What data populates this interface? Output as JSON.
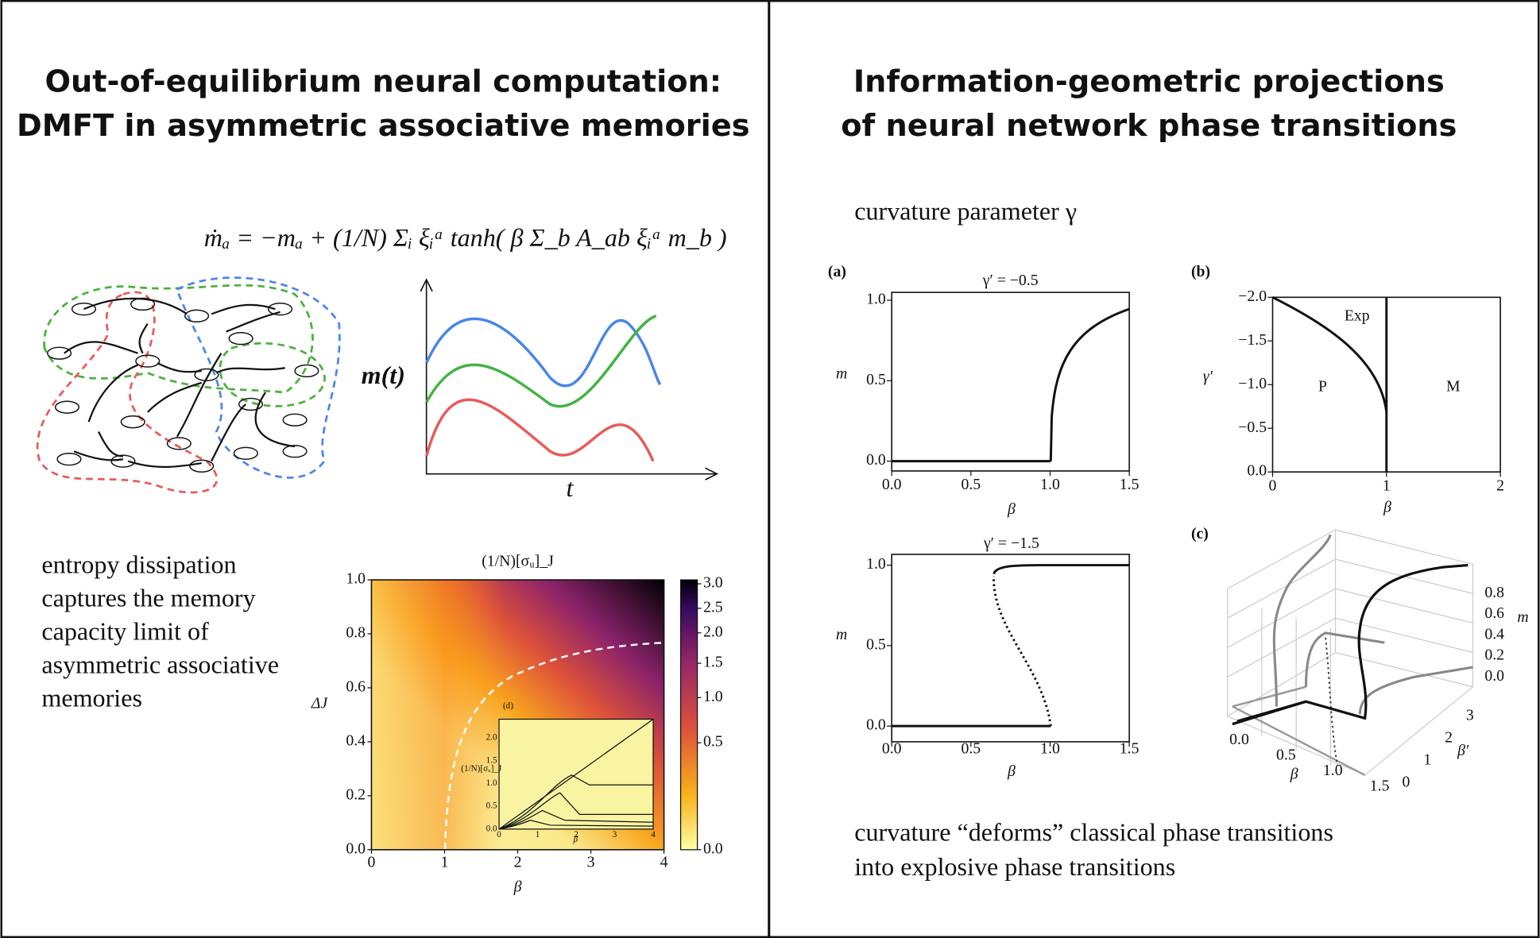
{
  "left": {
    "title": [
      "Out-of-equilibrium neural computation:",
      "DMFT in asymmetric associative memories"
    ],
    "equation": "ṁₐ = −mₐ + (1/N) Σᵢ ξᵢᵃ tanh( β Σ_b A_ab ξᵢᵃ m_b )",
    "m_label": "m(t)",
    "t_label": "t",
    "text": [
      "entropy dissipation",
      "captures the memory",
      "capacity limit of",
      "asymmetric associative",
      "memories"
    ],
    "heatmap": {
      "title": "(1/N)[σᵤ]_J",
      "xlabel": "β",
      "ylabel": "ΔJ",
      "xticks": [
        "0",
        "1",
        "2",
        "3",
        "4"
      ],
      "yticks": [
        "0.0",
        "0.2",
        "0.4",
        "0.6",
        "0.8",
        "1.0"
      ],
      "colorbar_ticks": [
        "0.0",
        "0.5",
        "1.0",
        "1.5",
        "2.0",
        "2.5",
        "3.0"
      ],
      "inset": {
        "label": "(d)",
        "xlabel": "β",
        "ylabel": "(1/N)[σᵤ]_J",
        "xticks": [
          "0",
          "1",
          "2",
          "3",
          "4"
        ],
        "yticks": [
          "0.0",
          "0.5",
          "1.0",
          "1.5",
          "2.0"
        ]
      }
    }
  },
  "right": {
    "title": [
      "Information-geometric projections",
      "of neural network phase transitions"
    ],
    "caption_top": "curvature parameter γ",
    "panel_a": {
      "label": "(a)",
      "title": "γ′ = −0.5",
      "xlabel": "β",
      "ylabel": "m",
      "xticks": [
        "0.0",
        "0.5",
        "1.0",
        "1.5"
      ],
      "yticks": [
        "0.0",
        "0.5",
        "1.0"
      ]
    },
    "panel_b": {
      "label": "(b)",
      "xlabel": "β",
      "ylabel": "γ′",
      "xticks": [
        "0",
        "1",
        "2"
      ],
      "yticks": [
        "0.0",
        "−0.5",
        "−1.0",
        "−1.5",
        "−2.0"
      ],
      "regions": [
        "Exp",
        "P",
        "M"
      ]
    },
    "panel_a2": {
      "title": "γ′ = −1.5",
      "xlabel": "β",
      "ylabel": "m",
      "xticks": [
        "0.0",
        "0.5",
        "1.0",
        "1.5"
      ],
      "yticks": [
        "0.0",
        "0.5",
        "1.0"
      ]
    },
    "panel_c": {
      "label": "(c)",
      "beta_ticks": [
        "0.0",
        "0.5",
        "1.0",
        "1.5"
      ],
      "beta2_ticks": [
        "0",
        "1",
        "2",
        "3"
      ],
      "m_ticks": [
        "0.0",
        "0.2",
        "0.4",
        "0.6",
        "0.8"
      ],
      "beta_label": "β",
      "beta2_label": "β′",
      "m_label": "m"
    },
    "caption_bottom": [
      "curvature “deforms” classical phase transitions",
      "into explosive phase transitions"
    ]
  }
}
